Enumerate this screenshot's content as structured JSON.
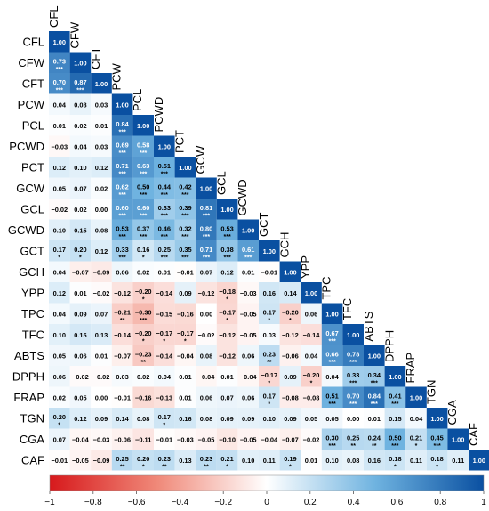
{
  "chart_data": {
    "type": "heatmap",
    "variables": [
      "CFL",
      "CFW",
      "CFT",
      "PCW",
      "PCL",
      "PCWD",
      "PCT",
      "GCW",
      "GCL",
      "GCWD",
      "GCT",
      "GCH",
      "YPP",
      "TPC",
      "TFC",
      "ABTS",
      "DPPH",
      "FRAP",
      "TGN",
      "CGA",
      "CAF"
    ],
    "value_labels": [
      [
        "1.00"
      ],
      [
        "0.73",
        "1.00"
      ],
      [
        "0.70",
        "0.87",
        "1.00"
      ],
      [
        "0.04",
        "0.08",
        "0.03",
        "1.00"
      ],
      [
        "0.01",
        "0.02",
        "0.01",
        "0.84",
        "1.00"
      ],
      [
        "−0.03",
        "0.04",
        "0.03",
        "0.69",
        "0.58",
        "1.00"
      ],
      [
        "0.12",
        "0.10",
        "0.12",
        "0.71",
        "0.63",
        "0.51",
        "1.00"
      ],
      [
        "0.05",
        "0.07",
        "0.02",
        "0.62",
        "0.50",
        "0.44",
        "0.42",
        "1.00"
      ],
      [
        "−0.02",
        "0.02",
        "0.00",
        "0.60",
        "0.60",
        "0.33",
        "0.39",
        "0.81",
        "1.00"
      ],
      [
        "0.10",
        "0.15",
        "0.08",
        "0.53",
        "0.37",
        "0.46",
        "0.32",
        "0.80",
        "0.53",
        "1.00"
      ],
      [
        "0.17",
        "0.20",
        "0.12",
        "0.33",
        "0.16",
        "0.25",
        "0.35",
        "0.71",
        "0.38",
        "0.61",
        "1.00"
      ],
      [
        "0.04",
        "−0.07",
        "−0.09",
        "0.06",
        "0.02",
        "0.01",
        "−0.01",
        "0.07",
        "0.12",
        "0.01",
        "−0.01",
        "1.00"
      ],
      [
        "0.12",
        "0.01",
        "−0.02",
        "−0.12",
        "−0.20",
        "−0.14",
        "0.09",
        "−0.12",
        "−0.18",
        "−0.03",
        "0.16",
        "0.14",
        "1.00"
      ],
      [
        "0.04",
        "0.09",
        "0.07",
        "−0.21",
        "−0.30",
        "−0.15",
        "−0.16",
        "0.00",
        "−0.17",
        "−0.05",
        "0.17",
        "−0.20",
        "0.06",
        "1.00"
      ],
      [
        "0.10",
        "0.15",
        "0.13",
        "−0.14",
        "−0.20",
        "−0.17",
        "−0.17",
        "−0.02",
        "−0.12",
        "−0.05",
        "0.03",
        "−0.12",
        "−0.14",
        "0.67",
        "1.00"
      ],
      [
        "0.05",
        "0.06",
        "0.01",
        "−0.07",
        "−0.23",
        "−0.14",
        "−0.04",
        "0.08",
        "−0.12",
        "0.06",
        "0.23",
        "−0.06",
        "0.04",
        "0.66",
        "0.78",
        "1.00"
      ],
      [
        "0.06",
        "−0.02",
        "−0.02",
        "0.03",
        "0.02",
        "0.04",
        "0.01",
        "−0.04",
        "0.01",
        "−0.04",
        "−0.17",
        "0.09",
        "−0.20",
        "0.04",
        "0.33",
        "0.34",
        "1.00"
      ],
      [
        "0.02",
        "0.05",
        "0.00",
        "−0.01",
        "−0.16",
        "−0.13",
        "0.01",
        "0.06",
        "0.07",
        "0.06",
        "0.17",
        "−0.08",
        "−0.08",
        "0.51",
        "0.70",
        "0.84",
        "0.41",
        "1.00"
      ],
      [
        "0.20",
        "0.12",
        "0.09",
        "0.14",
        "0.08",
        "0.17",
        "0.16",
        "0.08",
        "0.09",
        "0.09",
        "0.10",
        "0.09",
        "0.05",
        "0.05",
        "0.00",
        "0.01",
        "0.15",
        "0.04",
        "1.00"
      ],
      [
        "0.07",
        "−0.04",
        "−0.03",
        "−0.06",
        "−0.11",
        "−0.01",
        "−0.03",
        "−0.05",
        "−0.10",
        "−0.05",
        "−0.04",
        "−0.07",
        "−0.02",
        "0.30",
        "0.25",
        "0.24",
        "0.50",
        "0.21",
        "0.45",
        "1.00"
      ],
      [
        "−0.01",
        "−0.05",
        "−0.09",
        "0.25",
        "0.20",
        "0.23",
        "0.13",
        "0.23",
        "0.21",
        "0.10",
        "0.11",
        "0.19",
        "0.01",
        "0.10",
        "0.08",
        "0.16",
        "0.18",
        "0.11",
        "0.18",
        "0.11",
        "1.00"
      ]
    ],
    "significance": [
      [
        ""
      ],
      [
        "***",
        ""
      ],
      [
        "***",
        "***",
        ""
      ],
      [
        "",
        "",
        "",
        ""
      ],
      [
        "",
        "",
        "",
        "***",
        ""
      ],
      [
        "",
        "",
        "",
        "***",
        "***",
        ""
      ],
      [
        "",
        "",
        "",
        "***",
        "***",
        "***",
        ""
      ],
      [
        "",
        "",
        "",
        "***",
        "***",
        "***",
        "***",
        ""
      ],
      [
        "",
        "",
        "",
        "***",
        "***",
        "***",
        "***",
        "***",
        ""
      ],
      [
        "",
        "",
        "",
        "***",
        "***",
        "***",
        "***",
        "***",
        "***",
        ""
      ],
      [
        "*",
        "*",
        "",
        "***",
        "*",
        "***",
        "***",
        "***",
        "***",
        "***",
        ""
      ],
      [
        "",
        "",
        "",
        "",
        "",
        "",
        "",
        "",
        "",
        "",
        "",
        ""
      ],
      [
        "",
        "",
        "",
        "",
        "*",
        "",
        "",
        "",
        "*",
        "",
        "",
        "",
        ""
      ],
      [
        "",
        "",
        "",
        "**",
        "***",
        "",
        "",
        "",
        "*",
        "",
        "*",
        "*",
        "",
        ""
      ],
      [
        "",
        "",
        "",
        "",
        "*",
        "*",
        "*",
        "",
        "",
        "",
        "",
        "",
        "",
        "***",
        ""
      ],
      [
        "",
        "",
        "",
        "",
        "**",
        "",
        "",
        "",
        "",
        "",
        "**",
        "",
        "",
        "***",
        "***",
        ""
      ],
      [
        "",
        "",
        "",
        "",
        "",
        "",
        "",
        "",
        "",
        "",
        "*",
        "",
        "*",
        "",
        "***",
        "***",
        ""
      ],
      [
        "",
        "",
        "",
        "",
        "",
        "",
        "",
        "",
        "",
        "",
        "*",
        "",
        "",
        "***",
        "***",
        "***",
        "***",
        ""
      ],
      [
        "*",
        "",
        "",
        "",
        "",
        "*",
        "",
        "",
        "",
        "",
        "",
        "",
        "",
        "",
        "",
        "",
        "",
        "",
        ""
      ],
      [
        "",
        "",
        "",
        "",
        "",
        "",
        "",
        "",
        "",
        "",
        "",
        "",
        "",
        "***",
        "**",
        "**",
        "***",
        "*",
        "***",
        ""
      ],
      [
        "",
        "",
        "",
        "**",
        "*",
        "**",
        "",
        "**",
        "*",
        "",
        "",
        "*",
        "",
        "",
        "",
        "",
        "*",
        "",
        "*",
        "",
        ""
      ]
    ],
    "color_scale": {
      "range": [
        -1,
        1
      ],
      "colors": [
        "#d7191c",
        "#ffffff",
        "#0a50a1"
      ],
      "ticks": [
        "−1",
        "−0.8",
        "−0.6",
        "−0.4",
        "−0.2",
        "0",
        "0.2",
        "0.4",
        "0.6",
        "0.8",
        "1"
      ]
    },
    "legend_placement": "bottom"
  }
}
